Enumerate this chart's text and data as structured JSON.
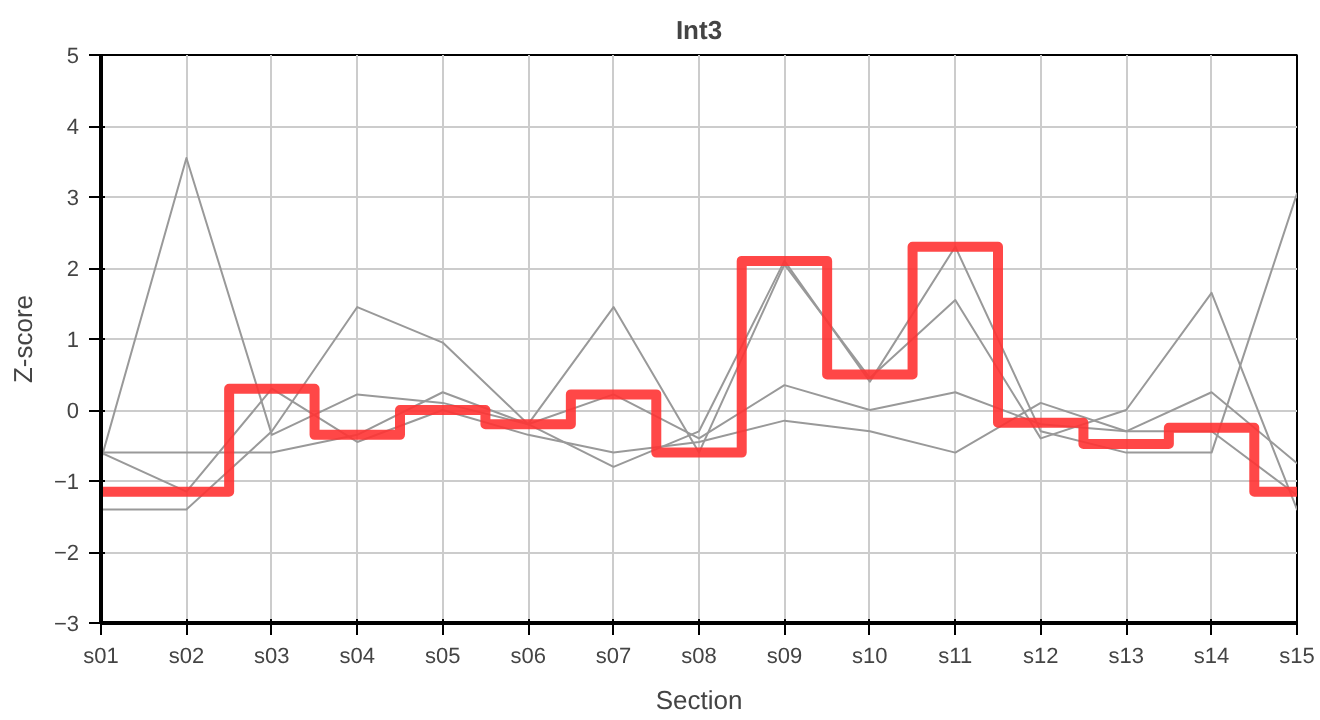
{
  "chart_data": {
    "type": "line",
    "title": "Int3",
    "xlabel": "Section",
    "ylabel": "Z-score",
    "categories": [
      "s01",
      "s02",
      "s03",
      "s04",
      "s05",
      "s06",
      "s07",
      "s08",
      "s09",
      "s10",
      "s11",
      "s12",
      "s13",
      "s14",
      "s15"
    ],
    "series": [
      {
        "color": "#999999",
        "values": [
          -0.7,
          3.55,
          -0.35,
          0.22,
          0.1,
          -0.2,
          0.22,
          -0.4,
          0.35,
          0.0,
          0.25,
          -0.2,
          -0.3,
          0.25,
          -0.75
        ]
      },
      {
        "color": "#999999",
        "values": [
          -0.6,
          -0.6,
          -0.6,
          -0.35,
          0.25,
          -0.2,
          -0.8,
          -0.3,
          2.1,
          0.4,
          2.3,
          -0.3,
          -0.6,
          -0.6,
          3.05
        ]
      },
      {
        "color": "#999999",
        "values": [
          -1.4,
          -1.4,
          -0.3,
          1.45,
          0.95,
          -0.2,
          1.45,
          -0.6,
          2.05,
          0.45,
          1.55,
          -0.4,
          0.0,
          1.65,
          -1.4
        ]
      },
      {
        "color": "#999999",
        "values": [
          -0.6,
          -1.15,
          0.3,
          -0.45,
          0.0,
          -0.35,
          -0.6,
          -0.45,
          -0.15,
          -0.3,
          -0.6,
          0.1,
          -0.3,
          -0.3,
          -1.2
        ]
      },
      {
        "type": "step",
        "color": "#ff3333",
        "values": [
          -1.15,
          -1.15,
          0.3,
          -0.35,
          0.0,
          -0.2,
          0.22,
          -0.6,
          2.1,
          0.5,
          2.3,
          -0.18,
          -0.48,
          -0.25,
          -1.15
        ]
      }
    ],
    "ylim": [
      -3,
      5
    ],
    "yticks": [
      -3,
      -2,
      -1,
      0,
      1,
      2,
      3,
      4,
      5
    ],
    "grid": true
  }
}
